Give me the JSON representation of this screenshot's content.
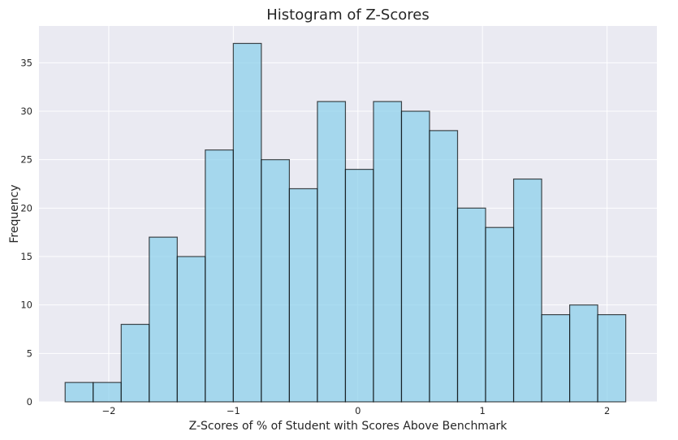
{
  "chart_data": {
    "type": "bar",
    "title": "Histogram of Z-Scores",
    "xlabel": "Z-Scores of % of Student with Scores Above Benchmark",
    "ylabel": "Frequency",
    "xlim": [
      -2.56,
      2.4
    ],
    "ylim": [
      0,
      38.8
    ],
    "grid": true,
    "bin_edges": [
      -2.35,
      -2.125,
      -1.9,
      -1.675,
      -1.45,
      -1.225,
      -1.0,
      -0.775,
      -0.55,
      -0.325,
      -0.1,
      0.125,
      0.35,
      0.575,
      0.8,
      1.025,
      1.25,
      1.475,
      1.7,
      1.925,
      2.15
    ],
    "values": [
      2,
      2,
      8,
      17,
      15,
      26,
      37,
      25,
      22,
      31,
      24,
      31,
      30,
      28,
      20,
      18,
      23,
      9,
      10,
      9
    ],
    "x_ticks": [
      -2,
      -1,
      0,
      1,
      2
    ],
    "x_tick_labels": [
      "−2",
      "−1",
      "0",
      "1",
      "2"
    ],
    "y_ticks": [
      0,
      5,
      10,
      15,
      20,
      25,
      30,
      35
    ],
    "y_tick_labels": [
      "0",
      "5",
      "10",
      "15",
      "20",
      "25",
      "30",
      "35"
    ],
    "colors": {
      "background": "#eaeaf2",
      "bar_fill": "#87ceeb",
      "bar_edge": "#000000"
    }
  }
}
